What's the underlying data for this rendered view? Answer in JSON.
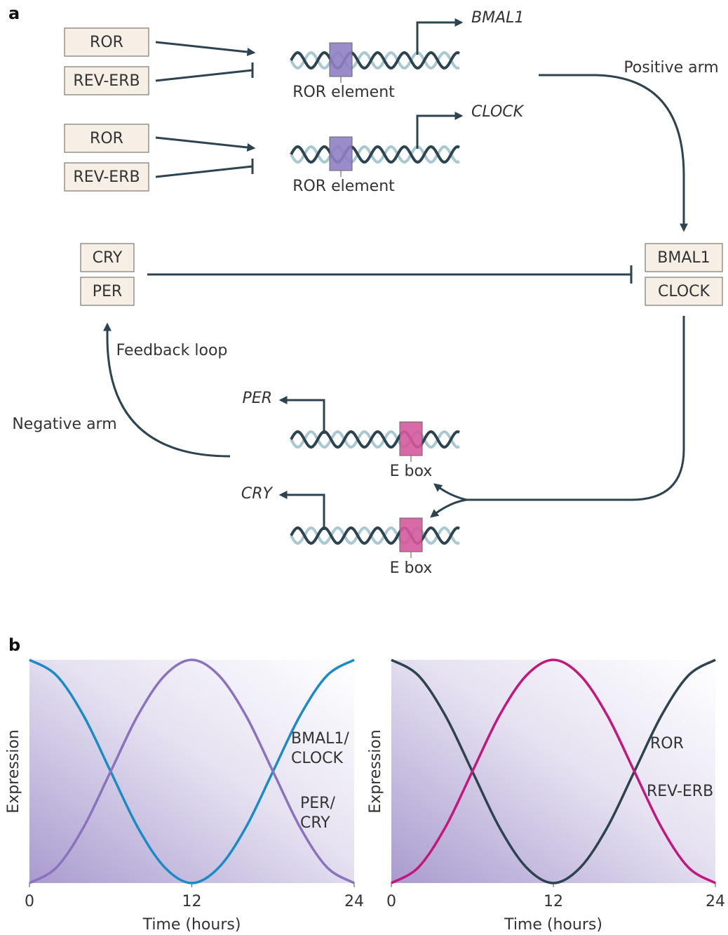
{
  "diagram": {
    "label": "a",
    "boxes": [
      "ROR",
      "REV-ERB",
      "ROR",
      "REV-ERB",
      "CRY",
      "PER",
      "BMAL1",
      "CLOCK"
    ],
    "genes": [
      "BMAL1",
      "CLOCK",
      "PER",
      "CRY"
    ],
    "elements": [
      "ROR element",
      "ROR element",
      "E box",
      "E box"
    ],
    "arrow_labels": [
      "Positive arm",
      "Feedback loop",
      "Negative arm"
    ]
  },
  "panel_b_label": "b",
  "chart_data": [
    {
      "type": "line",
      "xlabel": "Time (hours)",
      "ylabel": "Expression",
      "x": [
        0,
        2,
        4,
        6,
        8,
        10,
        12,
        14,
        16,
        18,
        20,
        22,
        24
      ],
      "xlim": [
        0,
        24
      ],
      "xticks": [
        0,
        12,
        24
      ],
      "ylim": [
        0,
        1
      ],
      "series": [
        {
          "name": "BMAL1/\nCLOCK",
          "color": "#1b8bc6",
          "values": [
            1,
            0.93,
            0.75,
            0.5,
            0.25,
            0.07,
            0,
            0.07,
            0.25,
            0.5,
            0.75,
            0.93,
            1
          ]
        },
        {
          "name": "PER/\nCRY",
          "color": "#8a72bd",
          "values": [
            0,
            0.07,
            0.25,
            0.5,
            0.75,
            0.93,
            1,
            0.93,
            0.75,
            0.5,
            0.25,
            0.07,
            0
          ]
        }
      ]
    },
    {
      "type": "line",
      "xlabel": "Time (hours)",
      "ylabel": "Expression",
      "x": [
        0,
        2,
        4,
        6,
        8,
        10,
        12,
        14,
        16,
        18,
        20,
        22,
        24
      ],
      "xlim": [
        0,
        24
      ],
      "xticks": [
        0,
        12,
        24
      ],
      "ylim": [
        0,
        1
      ],
      "series": [
        {
          "name": "ROR",
          "color": "#2d4450",
          "values": [
            1,
            0.93,
            0.75,
            0.5,
            0.25,
            0.07,
            0,
            0.07,
            0.25,
            0.5,
            0.75,
            0.93,
            1
          ]
        },
        {
          "name": "REV-ERB",
          "color": "#c2177c",
          "values": [
            0,
            0.07,
            0.25,
            0.5,
            0.75,
            0.93,
            1,
            0.93,
            0.75,
            0.5,
            0.25,
            0.07,
            0
          ]
        }
      ]
    }
  ]
}
